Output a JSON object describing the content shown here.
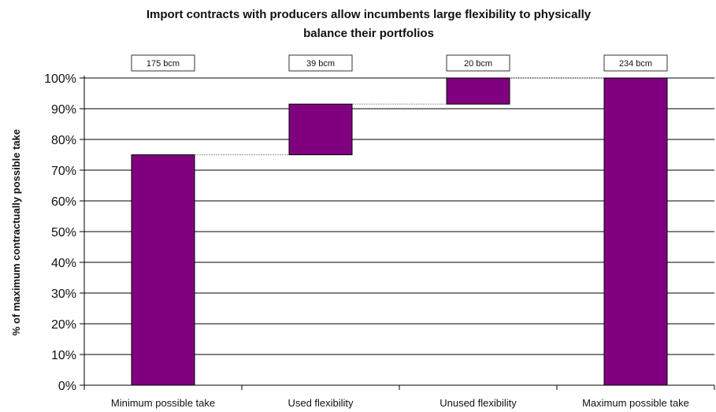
{
  "chart_data": {
    "type": "bar",
    "subtype": "waterfall",
    "title_lines": [
      "Import contracts with producers allow incumbents large flexibility to physically",
      "balance their portfolios"
    ],
    "ylabel": "% of maximum contractually possible take",
    "xlabel": "",
    "ylim": [
      0,
      100
    ],
    "yticks": [
      0,
      10,
      20,
      30,
      40,
      50,
      60,
      70,
      80,
      90,
      100
    ],
    "ytick_suffix": "%",
    "grid": true,
    "categories": [
      "Minimum possible take",
      "Used flexibility",
      "Unused flexibility",
      "Maximum possible take"
    ],
    "bars": [
      {
        "start": 0,
        "end": 75
      },
      {
        "start": 75,
        "end": 91.5
      },
      {
        "start": 91.5,
        "end": 100
      },
      {
        "start": 0,
        "end": 100
      }
    ],
    "value_labels": [
      "175 bcm",
      "39 bcm",
      "20 bcm",
      "234 bcm"
    ],
    "bar_color": "#800080"
  }
}
